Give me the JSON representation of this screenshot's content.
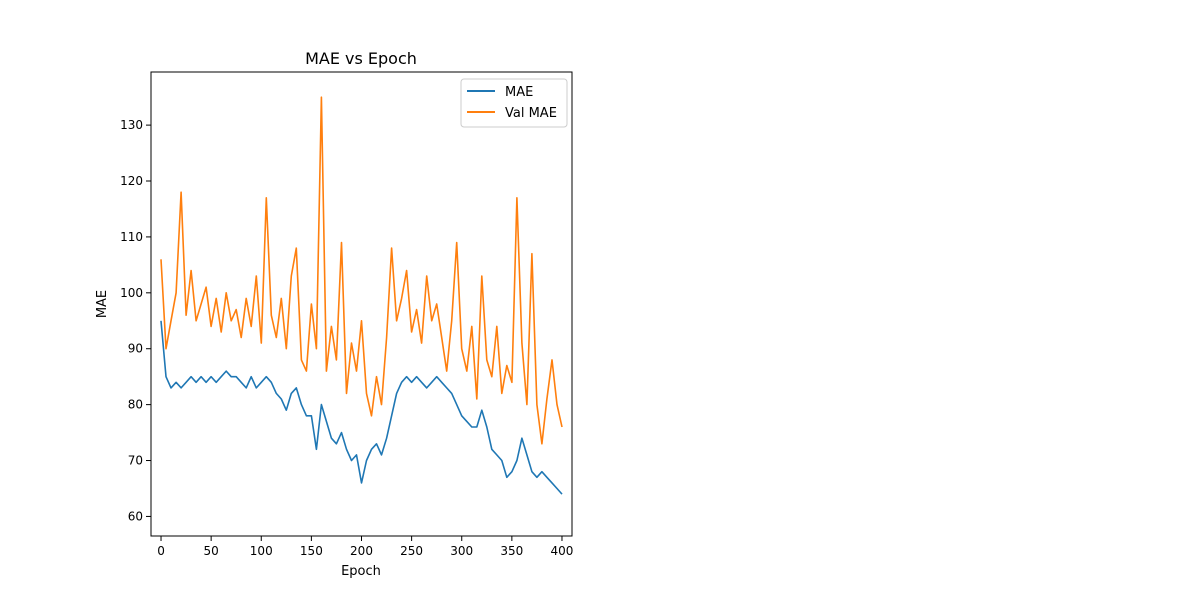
{
  "chart_data": {
    "type": "line",
    "title": "MAE vs Epoch",
    "xlabel": "Epoch",
    "ylabel": "MAE",
    "xlim": [
      -10,
      410
    ],
    "ylim": [
      56.5,
      139.5
    ],
    "xticks": [
      0,
      50,
      100,
      150,
      200,
      250,
      300,
      350,
      400
    ],
    "yticks": [
      60,
      70,
      80,
      90,
      100,
      110,
      120,
      130
    ],
    "grid": false,
    "legend": "top-right",
    "series": [
      {
        "name": "MAE",
        "color": "#1f77b4",
        "x": [
          0,
          5,
          10,
          15,
          20,
          25,
          30,
          35,
          40,
          45,
          50,
          55,
          60,
          65,
          70,
          75,
          80,
          85,
          90,
          95,
          100,
          105,
          110,
          115,
          120,
          125,
          130,
          135,
          140,
          145,
          150,
          155,
          160,
          165,
          170,
          175,
          180,
          185,
          190,
          195,
          200,
          205,
          210,
          215,
          220,
          225,
          230,
          235,
          240,
          245,
          250,
          255,
          260,
          265,
          270,
          275,
          280,
          285,
          290,
          295,
          300,
          305,
          310,
          315,
          320,
          325,
          330,
          335,
          340,
          345,
          350,
          355,
          360,
          365,
          370,
          375,
          380,
          385,
          390,
          395,
          400
        ],
        "values": [
          95,
          85,
          83,
          84,
          83,
          84,
          85,
          84,
          85,
          84,
          85,
          84,
          85,
          86,
          85,
          85,
          84,
          83,
          85,
          83,
          84,
          85,
          84,
          82,
          81,
          79,
          82,
          83,
          80,
          78,
          78,
          72,
          80,
          77,
          74,
          73,
          75,
          72,
          70,
          71,
          66,
          70,
          72,
          73,
          71,
          74,
          78,
          82,
          84,
          85,
          84,
          85,
          84,
          83,
          84,
          85,
          84,
          83,
          82,
          80,
          78,
          77,
          76,
          76,
          79,
          76,
          72,
          71,
          70,
          67,
          68,
          70,
          74,
          71,
          68,
          67,
          68,
          67,
          66,
          65,
          64
        ]
      },
      {
        "name": "Val MAE",
        "color": "#ff7f0e",
        "x": [
          0,
          5,
          10,
          15,
          20,
          25,
          30,
          35,
          40,
          45,
          50,
          55,
          60,
          65,
          70,
          75,
          80,
          85,
          90,
          95,
          100,
          105,
          110,
          115,
          120,
          125,
          130,
          135,
          140,
          145,
          150,
          155,
          160,
          165,
          170,
          175,
          180,
          185,
          190,
          195,
          200,
          205,
          210,
          215,
          220,
          225,
          230,
          235,
          240,
          245,
          250,
          255,
          260,
          265,
          270,
          275,
          280,
          285,
          290,
          295,
          300,
          305,
          310,
          315,
          320,
          325,
          330,
          335,
          340,
          345,
          350,
          355,
          360,
          365,
          370,
          375,
          380,
          385,
          390,
          395,
          400
        ],
        "values": [
          106,
          90,
          95,
          100,
          118,
          96,
          104,
          95,
          98,
          101,
          94,
          99,
          93,
          100,
          95,
          97,
          92,
          99,
          94,
          103,
          91,
          117,
          96,
          92,
          99,
          90,
          103,
          108,
          88,
          86,
          98,
          90,
          135,
          86,
          94,
          88,
          109,
          82,
          91,
          86,
          95,
          82,
          78,
          85,
          80,
          92,
          108,
          95,
          99,
          104,
          93,
          97,
          91,
          103,
          95,
          98,
          92,
          86,
          95,
          109,
          90,
          86,
          94,
          81,
          103,
          88,
          85,
          94,
          82,
          87,
          84,
          117,
          91,
          80,
          107,
          80,
          73,
          81,
          88,
          80,
          76
        ]
      }
    ]
  }
}
